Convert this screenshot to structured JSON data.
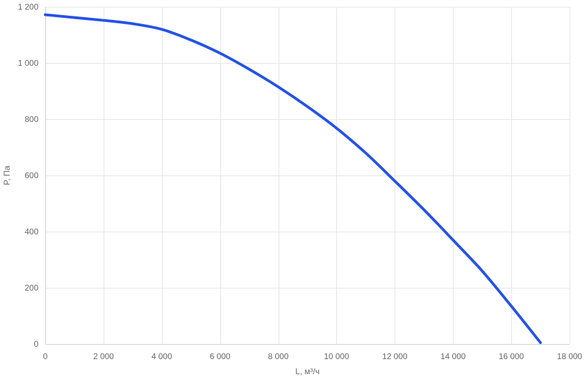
{
  "chart_data": {
    "type": "line",
    "title": "",
    "xlabel": "L, м³/ч",
    "ylabel": "P, Па",
    "xlim": [
      0,
      18000
    ],
    "ylim": [
      0,
      1200
    ],
    "grid": true,
    "x_ticks": [
      0,
      2000,
      4000,
      6000,
      8000,
      10000,
      12000,
      14000,
      16000,
      18000
    ],
    "x_tick_labels": [
      "0",
      "2 000",
      "4 000",
      "6 000",
      "8 000",
      "10 000",
      "12 000",
      "14 000",
      "16 000",
      "18 000"
    ],
    "y_ticks": [
      0,
      200,
      400,
      600,
      800,
      1000,
      1200
    ],
    "y_tick_labels": [
      "0",
      "200",
      "400",
      "600",
      "800",
      "1 000",
      "1 200"
    ],
    "colors": {
      "series": "#2453e6",
      "grid": "#e6e6e6",
      "text": "#666666"
    },
    "series": [
      {
        "x": [
          0,
          1000,
          2000,
          3000,
          4000,
          5000,
          6000,
          7000,
          8000,
          9000,
          10000,
          11000,
          12000,
          13000,
          14000,
          15000,
          16000,
          17000
        ],
        "y": [
          1172,
          1162,
          1152,
          1140,
          1120,
          1082,
          1035,
          978,
          915,
          845,
          768,
          680,
          580,
          478,
          370,
          260,
          135,
          5
        ]
      }
    ]
  }
}
